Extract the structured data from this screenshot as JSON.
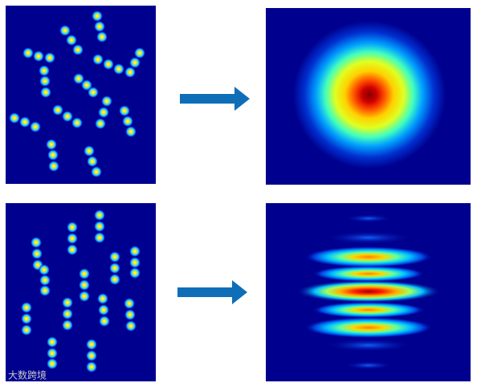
{
  "watermark": "大数跨境"
}
